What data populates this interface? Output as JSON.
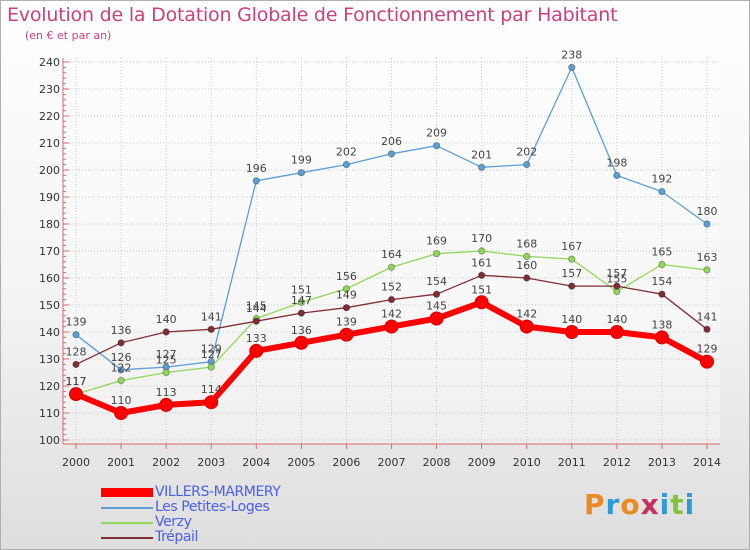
{
  "title": "Evolution de la Dotation Globale de Fonctionnement par Habitant",
  "subtitle": "(en € et par an)",
  "logo_text": "Proxiti",
  "chart_data": {
    "type": "line",
    "title": "Evolution de la Dotation Globale de Fonctionnement par Habitant",
    "subtitle": "(en € et par an)",
    "xlabel": "",
    "ylabel": "",
    "x": [
      2000,
      2001,
      2002,
      2003,
      2004,
      2005,
      2006,
      2007,
      2008,
      2009,
      2010,
      2011,
      2012,
      2013,
      2014
    ],
    "ylim": [
      100,
      240
    ],
    "yticks": [
      100,
      110,
      120,
      130,
      140,
      150,
      160,
      170,
      180,
      190,
      200,
      210,
      220,
      230,
      240
    ],
    "grid": true,
    "legend_position": "bottom-left",
    "series": [
      {
        "name": "VILLERS-MARMERY",
        "color": "#ff0000",
        "values": [
          117,
          110,
          113,
          114,
          133,
          136,
          139,
          142,
          145,
          151,
          142,
          140,
          140,
          138,
          129
        ]
      },
      {
        "name": "Les Petites-Loges",
        "color": "#5d9fd2",
        "values": [
          139,
          126,
          127,
          129,
          196,
          199,
          202,
          206,
          209,
          201,
          202,
          238,
          198,
          192,
          180
        ]
      },
      {
        "name": "Verzy",
        "color": "#8fd65a",
        "values": [
          117,
          122,
          125,
          127,
          145,
          151,
          156,
          164,
          169,
          170,
          168,
          167,
          155,
          165,
          163
        ]
      },
      {
        "name": "Trépail",
        "color": "#7f2e33",
        "values": [
          128,
          136,
          140,
          141,
          144,
          147,
          149,
          152,
          154,
          161,
          160,
          157,
          157,
          154,
          141
        ]
      }
    ]
  }
}
